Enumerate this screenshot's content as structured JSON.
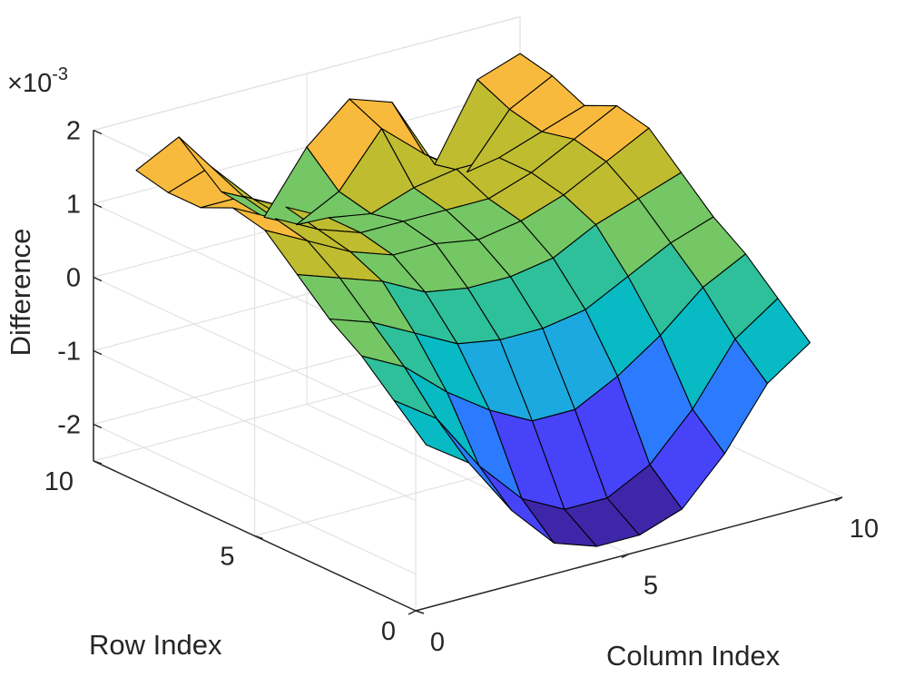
{
  "chart_data": {
    "type": "surface",
    "xlabel": "Column Index",
    "ylabel": "Row Index",
    "zlabel": "Difference",
    "z_exponent_base": "×10",
    "z_exponent_power": "-3",
    "xlim": [
      0,
      10
    ],
    "ylim": [
      0,
      10
    ],
    "zlim": [
      -2.5,
      2
    ],
    "x_ticks": [
      "0",
      "5",
      "10"
    ],
    "y_ticks": [
      "0",
      "5",
      "10"
    ],
    "z_ticks": [
      "-2",
      "-1",
      "0",
      "1",
      "2"
    ],
    "grid": true,
    "colormap": [
      "#3e26a8",
      "#4743f8",
      "#2c7bfe",
      "#1ca9df",
      "#07bac3",
      "#2ec09a",
      "#74c764",
      "#bfbc2f",
      "#f7ba3c",
      "#f8fa0d"
    ],
    "color_limits": [
      -2.5,
      2.0
    ],
    "x": [
      1,
      2,
      3,
      4,
      5,
      6,
      7,
      8,
      9,
      10
    ],
    "y": [
      1,
      2,
      3,
      4,
      5,
      6,
      7,
      8,
      9,
      10
    ],
    "z": [
      [
        -0.6,
        -1.0,
        -1.8,
        -2.4,
        -2.6,
        -2.6,
        -2.4,
        -1.8,
        -1.0,
        -0.6
      ],
      [
        -0.2,
        -0.6,
        -1.4,
        -2.0,
        -2.3,
        -2.3,
        -2.0,
        -1.4,
        -0.6,
        -0.2
      ],
      [
        0.2,
        -0.1,
        -0.6,
        -1.0,
        -1.3,
        -1.3,
        -1.0,
        -0.6,
        -0.1,
        0.2
      ],
      [
        0.5,
        0.3,
        0.0,
        -0.3,
        -0.4,
        -0.4,
        -0.3,
        0.0,
        0.3,
        0.5
      ],
      [
        0.9,
        0.7,
        0.5,
        0.2,
        0.1,
        0.1,
        0.2,
        0.5,
        0.7,
        0.9
      ],
      [
        1.3,
        1.0,
        0.7,
        0.5,
        0.5,
        0.4,
        0.5,
        0.7,
        1.0,
        1.3
      ],
      [
        1.4,
        1.1,
        0.8,
        0.6,
        0.6,
        0.6,
        0.6,
        0.8,
        1.1,
        1.4
      ],
      [
        1.2,
        1.2,
        0.9,
        0.6,
        0.5,
        0.7,
        0.8,
        0.8,
        1.0,
        1.2
      ],
      [
        1.2,
        1.4,
        0.8,
        0.3,
        0.6,
        1.3,
        0.8,
        0.4,
        1.1,
        1.4
      ],
      [
        1.3,
        1.6,
        0.7,
        0.2,
        1.0,
        1.5,
        1.3,
        0.3,
        1.3,
        1.5
      ]
    ]
  }
}
